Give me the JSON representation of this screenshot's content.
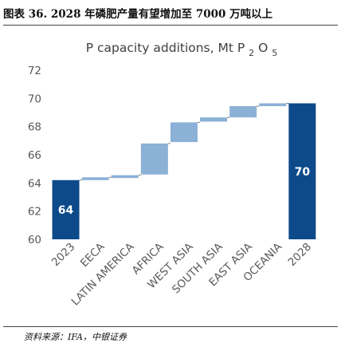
{
  "figure": {
    "title": "图表 36. 2028 年磷肥产量有望增加至 7000 万吨以上",
    "source": "资料来源：IFA，中银证券"
  },
  "colors": {
    "bar": "#8BB1D6",
    "total": "#0C4A8A",
    "connector": "#7F7F7F",
    "axis_text": "#595959"
  },
  "chart_data": {
    "type": "waterfall",
    "title_main": "P capacity additions, Mt P",
    "title_sub1": "2",
    "title_mid": "O",
    "title_sub2": "5",
    "categories": [
      "2023",
      "EECA",
      "LATIN AMERICA",
      "AFRICA",
      "WEST ASIA",
      "SOUTH ASIA",
      "EAST ASIA",
      "OCEANIA",
      "2028"
    ],
    "series": [
      {
        "values": [
          {
            "kind": "total",
            "start": 60,
            "end": 64.2,
            "label": "64"
          },
          {
            "kind": "delta",
            "start": 64.2,
            "end": 64.4
          },
          {
            "kind": "delta",
            "start": 64.35,
            "end": 64.55
          },
          {
            "kind": "delta",
            "start": 64.6,
            "end": 66.8
          },
          {
            "kind": "delta",
            "start": 66.9,
            "end": 68.3
          },
          {
            "kind": "delta",
            "start": 68.35,
            "end": 68.65
          },
          {
            "kind": "delta",
            "start": 68.65,
            "end": 69.45
          },
          {
            "kind": "delta",
            "start": 69.45,
            "end": 69.65
          },
          {
            "kind": "total",
            "start": 60,
            "end": 69.65,
            "label": "70"
          }
        ]
      }
    ],
    "ylim": [
      60,
      72
    ],
    "yticks": [
      "60",
      "62",
      "64",
      "66",
      "68",
      "70",
      "72"
    ],
    "grid": false
  }
}
